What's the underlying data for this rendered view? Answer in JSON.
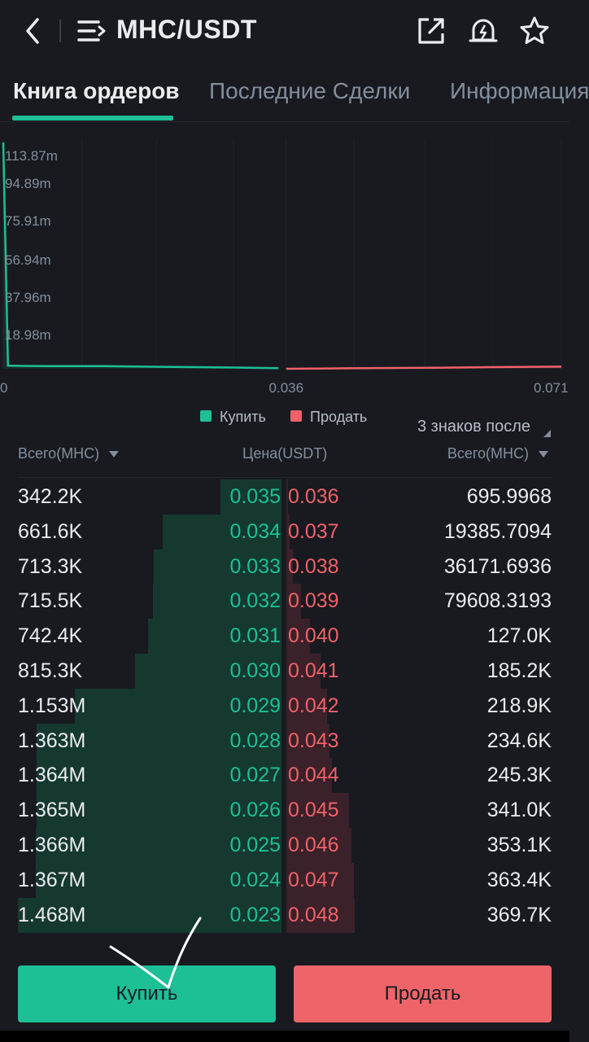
{
  "header": {
    "pair": "MHC/USDT",
    "icons": [
      "back-chevron-icon",
      "menu-list-icon",
      "external-link-icon",
      "price-alert-bell-icon",
      "favorite-star-icon"
    ]
  },
  "tabs": [
    {
      "label": "Книга ордеров",
      "active": true
    },
    {
      "label": "Последние Сделки",
      "active": false
    },
    {
      "label": "Информация",
      "active": false
    }
  ],
  "chart_data": {
    "type": "area",
    "title": "",
    "y_ticks": [
      "113.87m",
      "94.89m",
      "75.91m",
      "56.94m",
      "37.96m",
      "18.98m"
    ],
    "x_ticks": [
      "0",
      "0.036",
      "0.071"
    ],
    "ylim": [
      0,
      120
    ],
    "xlim": [
      0,
      0.071
    ],
    "series": [
      {
        "name": "Купить",
        "color": "#1dbf95",
        "points": [
          [
            0.0,
            113.87
          ],
          [
            0.0006,
            1.6
          ],
          [
            0.0024,
            1.45
          ],
          [
            0.006,
            1.35
          ],
          [
            0.013,
            1.37
          ],
          [
            0.0155,
            1.2
          ],
          [
            0.0218,
            0.92
          ],
          [
            0.027,
            0.72
          ],
          [
            0.0296,
            0.6
          ],
          [
            0.033,
            0.43
          ],
          [
            0.035,
            0.34
          ]
        ]
      },
      {
        "name": "Продать",
        "color": "#f0616a",
        "points": [
          [
            0.036,
            0.0007
          ],
          [
            0.04,
            0.13
          ],
          [
            0.044,
            0.25
          ],
          [
            0.048,
            0.37
          ],
          [
            0.055,
            0.55
          ],
          [
            0.062,
            0.8
          ],
          [
            0.071,
            1.05
          ]
        ]
      }
    ]
  },
  "legend": {
    "buy": "Купить",
    "sell": "Продать"
  },
  "decimals_label": "3 знаков после",
  "colors": {
    "buy": "#1dbf95",
    "sell": "#f0616a",
    "background": "#181a20"
  },
  "book": {
    "headers": {
      "bid_total": "Всего(MHC)",
      "price": "Цена(USDT)",
      "ask_total": "Всего(MHC)"
    },
    "rows": [
      {
        "bid_total": "342.2K",
        "bid_price": "0.035",
        "ask_price": "0.036",
        "ask_total": "695.9968",
        "bid_depth": 0.233,
        "ask_depth": 0.002
      },
      {
        "bid_total": "661.6K",
        "bid_price": "0.034",
        "ask_price": "0.037",
        "ask_total": "19385.7094",
        "bid_depth": 0.451,
        "ask_depth": 0.052
      },
      {
        "bid_total": "713.3K",
        "bid_price": "0.033",
        "ask_price": "0.038",
        "ask_total": "36171.6936",
        "bid_depth": 0.486,
        "ask_depth": 0.098
      },
      {
        "bid_total": "715.5K",
        "bid_price": "0.032",
        "ask_price": "0.039",
        "ask_total": "79608.3193",
        "bid_depth": 0.487,
        "ask_depth": 0.215
      },
      {
        "bid_total": "742.4K",
        "bid_price": "0.031",
        "ask_price": "0.040",
        "ask_total": "127.0K",
        "bid_depth": 0.506,
        "ask_depth": 0.343
      },
      {
        "bid_total": "815.3K",
        "bid_price": "0.030",
        "ask_price": "0.041",
        "ask_total": "185.2K",
        "bid_depth": 0.555,
        "ask_depth": 0.5
      },
      {
        "bid_total": "1.153M",
        "bid_price": "0.029",
        "ask_price": "0.042",
        "ask_total": "218.9K",
        "bid_depth": 0.785,
        "ask_depth": 0.592
      },
      {
        "bid_total": "1.363M",
        "bid_price": "0.028",
        "ask_price": "0.043",
        "ask_total": "234.6K",
        "bid_depth": 0.929,
        "ask_depth": 0.634
      },
      {
        "bid_total": "1.364M",
        "bid_price": "0.027",
        "ask_price": "0.044",
        "ask_total": "245.3K",
        "bid_depth": 0.929,
        "ask_depth": 0.663
      },
      {
        "bid_total": "1.365M",
        "bid_price": "0.026",
        "ask_price": "0.045",
        "ask_total": "341.0K",
        "bid_depth": 0.93,
        "ask_depth": 0.922
      },
      {
        "bid_total": "1.366M",
        "bid_price": "0.025",
        "ask_price": "0.046",
        "ask_total": "353.1K",
        "bid_depth": 0.931,
        "ask_depth": 0.955
      },
      {
        "bid_total": "1.367M",
        "bid_price": "0.024",
        "ask_price": "0.047",
        "ask_total": "363.4K",
        "bid_depth": 0.931,
        "ask_depth": 0.983
      },
      {
        "bid_total": "1.468M",
        "bid_price": "0.023",
        "ask_price": "0.048",
        "ask_total": "369.7K",
        "bid_depth": 1.0,
        "ask_depth": 1.0
      }
    ]
  },
  "actions": {
    "buy": "Купить",
    "sell": "Продать"
  }
}
